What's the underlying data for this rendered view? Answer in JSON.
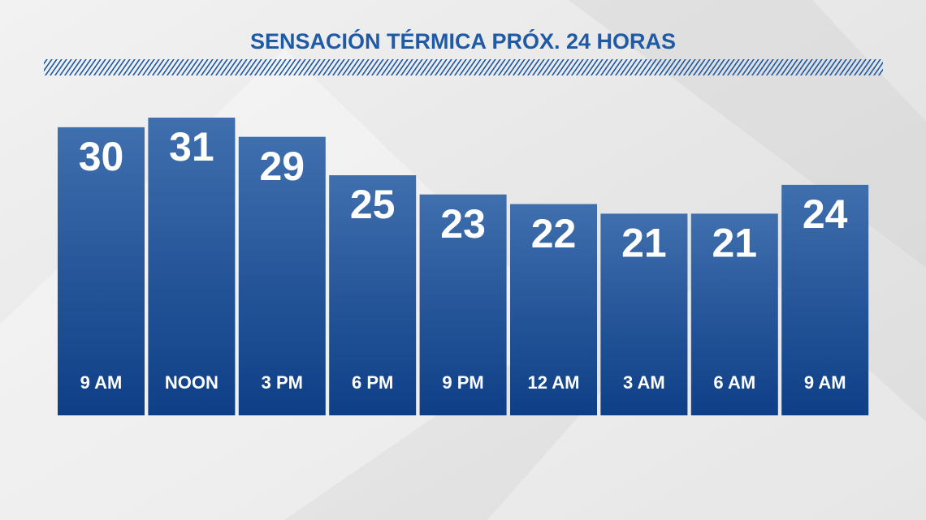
{
  "chart_data": {
    "type": "bar",
    "title": "SENSACIÓN TÉRMICA PRÓX. 24 HORAS",
    "categories": [
      "9 AM",
      "NOON",
      "3 PM",
      "6 PM",
      "9 PM",
      "12 AM",
      "3 AM",
      "6 AM",
      "9 AM"
    ],
    "values": [
      30,
      31,
      29,
      25,
      23,
      22,
      21,
      21,
      24
    ],
    "color": "#1d4f93"
  }
}
